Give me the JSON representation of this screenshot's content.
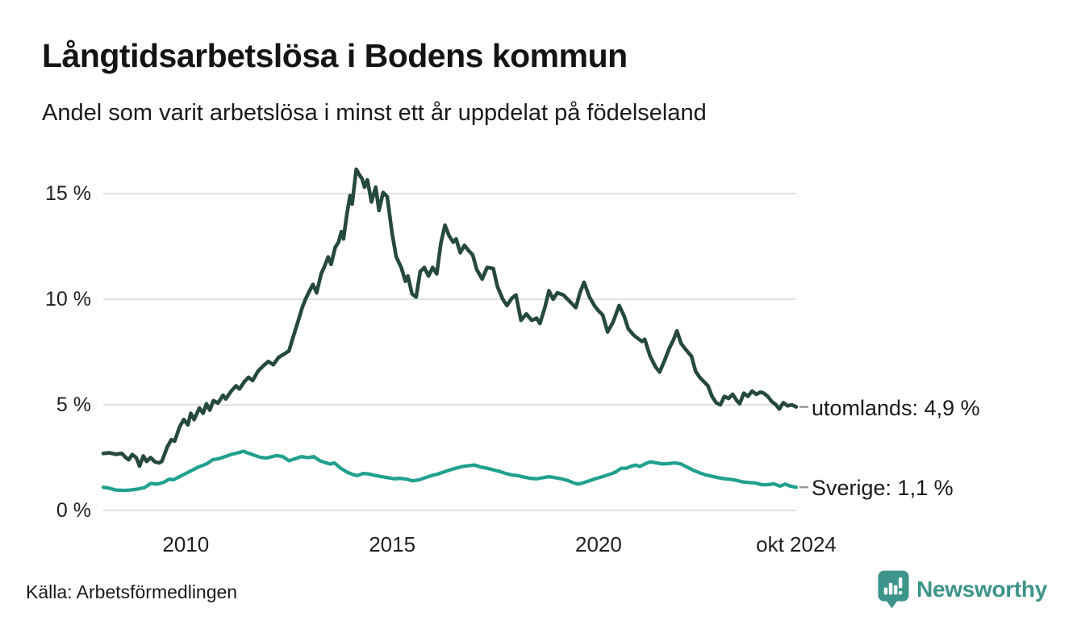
{
  "branding": {
    "wordmark": "Newsworthy"
  },
  "chart_data": {
    "type": "line",
    "title": "Långtidsarbetslösa i Bodens kommun",
    "subtitle": "Andel som varit arbetslösa i minst ett år uppdelat på födelseland",
    "source": "Källa: Arbetsförmedlingen",
    "grid": "horizontal",
    "legend_position": "right-end-labels",
    "colors": {
      "gridline": "#e2e2e2",
      "connector": "#999999"
    },
    "x_axis": {
      "range": [
        2008.0,
        2024.79
      ],
      "ticks": [
        {
          "label": "2010",
          "year": 2010
        },
        {
          "label": "2015",
          "year": 2015
        },
        {
          "label": "2020",
          "year": 2020
        },
        {
          "label": "okt 2024",
          "year": 2024.79
        }
      ]
    },
    "y_axis": {
      "range": [
        0,
        16.5
      ],
      "unit": "%",
      "ticks": [
        {
          "label": "0 %",
          "value": 0
        },
        {
          "label": "5 %",
          "value": 5
        },
        {
          "label": "10 %",
          "value": 10
        },
        {
          "label": "15 %",
          "value": 15
        }
      ]
    },
    "series": [
      {
        "name": "utomlands",
        "end_label": "utomlands: 4,9 %",
        "end_value": 4.9,
        "color": "#26493e",
        "stroke_width": 4.6,
        "points": [
          [
            2008.0,
            2.7
          ],
          [
            2008.15,
            2.73
          ],
          [
            2008.3,
            2.66
          ],
          [
            2008.45,
            2.7
          ],
          [
            2008.55,
            2.5
          ],
          [
            2008.62,
            2.4
          ],
          [
            2008.7,
            2.65
          ],
          [
            2008.8,
            2.5
          ],
          [
            2008.88,
            2.1
          ],
          [
            2008.97,
            2.58
          ],
          [
            2009.05,
            2.32
          ],
          [
            2009.15,
            2.5
          ],
          [
            2009.25,
            2.3
          ],
          [
            2009.35,
            2.25
          ],
          [
            2009.42,
            2.32
          ],
          [
            2009.55,
            3.0
          ],
          [
            2009.65,
            3.35
          ],
          [
            2009.73,
            3.28
          ],
          [
            2009.85,
            3.95
          ],
          [
            2009.95,
            4.3
          ],
          [
            2010.05,
            4.05
          ],
          [
            2010.12,
            4.6
          ],
          [
            2010.2,
            4.3
          ],
          [
            2010.33,
            4.85
          ],
          [
            2010.42,
            4.6
          ],
          [
            2010.5,
            5.05
          ],
          [
            2010.58,
            4.75
          ],
          [
            2010.67,
            5.2
          ],
          [
            2010.78,
            5.08
          ],
          [
            2010.9,
            5.45
          ],
          [
            2010.97,
            5.28
          ],
          [
            2011.1,
            5.65
          ],
          [
            2011.22,
            5.9
          ],
          [
            2011.3,
            5.75
          ],
          [
            2011.42,
            6.1
          ],
          [
            2011.52,
            6.3
          ],
          [
            2011.62,
            6.15
          ],
          [
            2011.75,
            6.6
          ],
          [
            2011.88,
            6.85
          ],
          [
            2012.0,
            7.05
          ],
          [
            2012.12,
            6.9
          ],
          [
            2012.25,
            7.25
          ],
          [
            2012.38,
            7.4
          ],
          [
            2012.5,
            7.55
          ],
          [
            2012.6,
            8.2
          ],
          [
            2012.72,
            8.95
          ],
          [
            2012.82,
            9.6
          ],
          [
            2012.9,
            10.0
          ],
          [
            2013.0,
            10.4
          ],
          [
            2013.08,
            10.7
          ],
          [
            2013.17,
            10.3
          ],
          [
            2013.28,
            11.2
          ],
          [
            2013.35,
            11.5
          ],
          [
            2013.45,
            12.0
          ],
          [
            2013.52,
            11.65
          ],
          [
            2013.62,
            12.45
          ],
          [
            2013.7,
            12.7
          ],
          [
            2013.77,
            13.2
          ],
          [
            2013.82,
            12.85
          ],
          [
            2013.9,
            14.0
          ],
          [
            2013.98,
            14.9
          ],
          [
            2014.03,
            14.5
          ],
          [
            2014.13,
            16.15
          ],
          [
            2014.2,
            15.9
          ],
          [
            2014.27,
            15.7
          ],
          [
            2014.33,
            15.3
          ],
          [
            2014.4,
            15.65
          ],
          [
            2014.5,
            14.6
          ],
          [
            2014.6,
            15.3
          ],
          [
            2014.68,
            14.2
          ],
          [
            2014.78,
            15.05
          ],
          [
            2014.88,
            14.85
          ],
          [
            2015.0,
            13.1
          ],
          [
            2015.1,
            12.0
          ],
          [
            2015.22,
            11.5
          ],
          [
            2015.32,
            10.85
          ],
          [
            2015.38,
            11.1
          ],
          [
            2015.48,
            10.25
          ],
          [
            2015.58,
            10.1
          ],
          [
            2015.68,
            11.3
          ],
          [
            2015.78,
            11.5
          ],
          [
            2015.88,
            11.1
          ],
          [
            2015.98,
            11.5
          ],
          [
            2016.08,
            11.2
          ],
          [
            2016.18,
            12.65
          ],
          [
            2016.28,
            13.5
          ],
          [
            2016.38,
            13.0
          ],
          [
            2016.48,
            12.7
          ],
          [
            2016.55,
            12.85
          ],
          [
            2016.65,
            12.2
          ],
          [
            2016.75,
            12.55
          ],
          [
            2016.85,
            12.3
          ],
          [
            2016.95,
            12.1
          ],
          [
            2017.05,
            11.4
          ],
          [
            2017.18,
            10.95
          ],
          [
            2017.3,
            11.5
          ],
          [
            2017.45,
            11.45
          ],
          [
            2017.55,
            10.6
          ],
          [
            2017.68,
            10.0
          ],
          [
            2017.78,
            9.7
          ],
          [
            2017.9,
            10.05
          ],
          [
            2018.0,
            10.2
          ],
          [
            2018.12,
            9.0
          ],
          [
            2018.25,
            9.3
          ],
          [
            2018.38,
            9.0
          ],
          [
            2018.5,
            9.1
          ],
          [
            2018.58,
            8.85
          ],
          [
            2018.7,
            9.6
          ],
          [
            2018.8,
            10.4
          ],
          [
            2018.9,
            10.0
          ],
          [
            2019.0,
            10.3
          ],
          [
            2019.15,
            10.2
          ],
          [
            2019.3,
            9.9
          ],
          [
            2019.45,
            9.6
          ],
          [
            2019.55,
            10.3
          ],
          [
            2019.65,
            10.8
          ],
          [
            2019.78,
            10.1
          ],
          [
            2019.9,
            9.7
          ],
          [
            2020.0,
            9.45
          ],
          [
            2020.1,
            9.25
          ],
          [
            2020.22,
            8.45
          ],
          [
            2020.35,
            8.9
          ],
          [
            2020.5,
            9.7
          ],
          [
            2020.62,
            9.2
          ],
          [
            2020.72,
            8.6
          ],
          [
            2020.85,
            8.3
          ],
          [
            2020.95,
            8.15
          ],
          [
            2021.05,
            8.0
          ],
          [
            2021.12,
            8.1
          ],
          [
            2021.25,
            7.3
          ],
          [
            2021.38,
            6.8
          ],
          [
            2021.48,
            6.55
          ],
          [
            2021.6,
            7.1
          ],
          [
            2021.72,
            7.7
          ],
          [
            2021.82,
            8.1
          ],
          [
            2021.9,
            8.5
          ],
          [
            2022.0,
            7.9
          ],
          [
            2022.12,
            7.6
          ],
          [
            2022.25,
            7.3
          ],
          [
            2022.35,
            6.6
          ],
          [
            2022.45,
            6.3
          ],
          [
            2022.55,
            6.1
          ],
          [
            2022.65,
            5.9
          ],
          [
            2022.75,
            5.4
          ],
          [
            2022.85,
            5.1
          ],
          [
            2022.95,
            5.0
          ],
          [
            2023.05,
            5.4
          ],
          [
            2023.15,
            5.3
          ],
          [
            2023.25,
            5.5
          ],
          [
            2023.35,
            5.2
          ],
          [
            2023.42,
            5.05
          ],
          [
            2023.52,
            5.55
          ],
          [
            2023.62,
            5.4
          ],
          [
            2023.72,
            5.65
          ],
          [
            2023.82,
            5.5
          ],
          [
            2023.92,
            5.6
          ],
          [
            2024.0,
            5.55
          ],
          [
            2024.1,
            5.4
          ],
          [
            2024.2,
            5.15
          ],
          [
            2024.3,
            5.0
          ],
          [
            2024.38,
            4.8
          ],
          [
            2024.48,
            5.1
          ],
          [
            2024.58,
            4.95
          ],
          [
            2024.68,
            5.0
          ],
          [
            2024.79,
            4.9
          ]
        ]
      },
      {
        "name": "Sverige",
        "end_label": "Sverige: 1,1 %",
        "end_value": 1.1,
        "color": "#21a08f",
        "stroke_width": 4.3,
        "points": [
          [
            2008.0,
            1.1
          ],
          [
            2008.15,
            1.05
          ],
          [
            2008.3,
            0.97
          ],
          [
            2008.5,
            0.95
          ],
          [
            2008.65,
            0.97
          ],
          [
            2008.8,
            1.0
          ],
          [
            2009.0,
            1.08
          ],
          [
            2009.15,
            1.28
          ],
          [
            2009.3,
            1.25
          ],
          [
            2009.45,
            1.32
          ],
          [
            2009.6,
            1.48
          ],
          [
            2009.7,
            1.45
          ],
          [
            2009.85,
            1.6
          ],
          [
            2010.0,
            1.75
          ],
          [
            2010.15,
            1.9
          ],
          [
            2010.3,
            2.05
          ],
          [
            2010.5,
            2.2
          ],
          [
            2010.65,
            2.4
          ],
          [
            2010.8,
            2.45
          ],
          [
            2010.95,
            2.55
          ],
          [
            2011.1,
            2.65
          ],
          [
            2011.25,
            2.72
          ],
          [
            2011.4,
            2.8
          ],
          [
            2011.5,
            2.72
          ],
          [
            2011.65,
            2.62
          ],
          [
            2011.8,
            2.52
          ],
          [
            2011.95,
            2.48
          ],
          [
            2012.1,
            2.55
          ],
          [
            2012.2,
            2.6
          ],
          [
            2012.35,
            2.55
          ],
          [
            2012.5,
            2.35
          ],
          [
            2012.65,
            2.45
          ],
          [
            2012.8,
            2.55
          ],
          [
            2012.95,
            2.5
          ],
          [
            2013.1,
            2.55
          ],
          [
            2013.25,
            2.35
          ],
          [
            2013.4,
            2.25
          ],
          [
            2013.5,
            2.2
          ],
          [
            2013.6,
            2.25
          ],
          [
            2013.75,
            2.0
          ],
          [
            2013.9,
            1.82
          ],
          [
            2014.05,
            1.7
          ],
          [
            2014.15,
            1.65
          ],
          [
            2014.3,
            1.75
          ],
          [
            2014.45,
            1.72
          ],
          [
            2014.6,
            1.65
          ],
          [
            2014.75,
            1.6
          ],
          [
            2014.9,
            1.55
          ],
          [
            2015.05,
            1.5
          ],
          [
            2015.2,
            1.52
          ],
          [
            2015.35,
            1.48
          ],
          [
            2015.5,
            1.4
          ],
          [
            2015.65,
            1.45
          ],
          [
            2015.8,
            1.55
          ],
          [
            2015.95,
            1.65
          ],
          [
            2016.1,
            1.72
          ],
          [
            2016.25,
            1.82
          ],
          [
            2016.4,
            1.92
          ],
          [
            2016.55,
            2.0
          ],
          [
            2016.7,
            2.08
          ],
          [
            2016.85,
            2.12
          ],
          [
            2017.0,
            2.15
          ],
          [
            2017.15,
            2.05
          ],
          [
            2017.3,
            2.0
          ],
          [
            2017.45,
            1.92
          ],
          [
            2017.6,
            1.85
          ],
          [
            2017.75,
            1.75
          ],
          [
            2017.9,
            1.68
          ],
          [
            2018.05,
            1.65
          ],
          [
            2018.2,
            1.58
          ],
          [
            2018.35,
            1.52
          ],
          [
            2018.5,
            1.5
          ],
          [
            2018.65,
            1.55
          ],
          [
            2018.8,
            1.6
          ],
          [
            2018.95,
            1.55
          ],
          [
            2019.1,
            1.5
          ],
          [
            2019.25,
            1.42
          ],
          [
            2019.4,
            1.3
          ],
          [
            2019.5,
            1.25
          ],
          [
            2019.65,
            1.32
          ],
          [
            2019.8,
            1.42
          ],
          [
            2019.95,
            1.52
          ],
          [
            2020.1,
            1.6
          ],
          [
            2020.25,
            1.7
          ],
          [
            2020.4,
            1.8
          ],
          [
            2020.55,
            2.0
          ],
          [
            2020.68,
            2.0
          ],
          [
            2020.8,
            2.1
          ],
          [
            2020.9,
            2.15
          ],
          [
            2021.0,
            2.08
          ],
          [
            2021.1,
            2.18
          ],
          [
            2021.25,
            2.3
          ],
          [
            2021.4,
            2.25
          ],
          [
            2021.55,
            2.2
          ],
          [
            2021.7,
            2.22
          ],
          [
            2021.85,
            2.25
          ],
          [
            2022.0,
            2.2
          ],
          [
            2022.15,
            2.05
          ],
          [
            2022.3,
            1.9
          ],
          [
            2022.45,
            1.78
          ],
          [
            2022.6,
            1.68
          ],
          [
            2022.75,
            1.62
          ],
          [
            2022.9,
            1.55
          ],
          [
            2023.05,
            1.5
          ],
          [
            2023.2,
            1.47
          ],
          [
            2023.35,
            1.42
          ],
          [
            2023.5,
            1.35
          ],
          [
            2023.65,
            1.32
          ],
          [
            2023.8,
            1.3
          ],
          [
            2023.95,
            1.22
          ],
          [
            2024.1,
            1.22
          ],
          [
            2024.25,
            1.26
          ],
          [
            2024.4,
            1.15
          ],
          [
            2024.52,
            1.25
          ],
          [
            2024.65,
            1.15
          ],
          [
            2024.79,
            1.1
          ]
        ]
      }
    ]
  }
}
